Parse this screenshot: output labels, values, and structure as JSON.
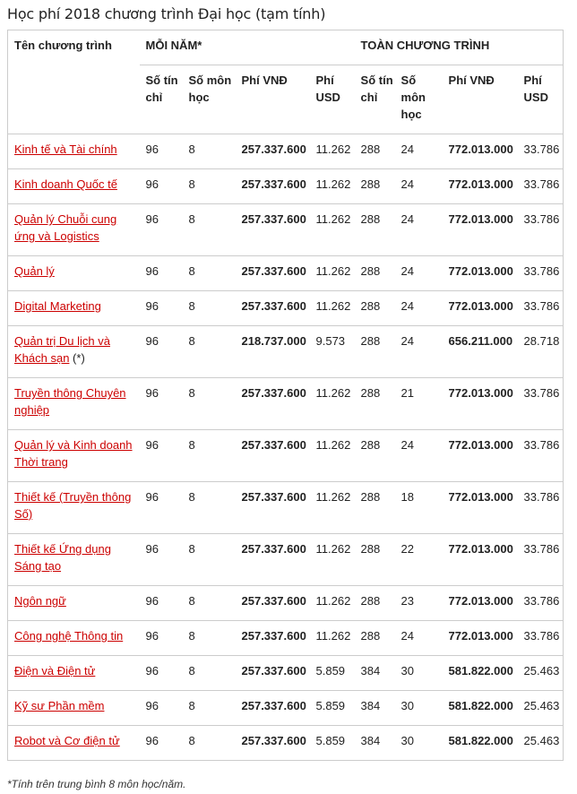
{
  "title": "Học phí 2018 chương trình Đại học (tạm tính)",
  "headers": {
    "program": "Tên chương trình",
    "per_year": "MỖI NĂM*",
    "whole": "TOÀN CHƯƠNG TRÌNH",
    "sub": [
      "Số tín chỉ",
      "Số môn học",
      "Phí VNĐ",
      "Phí USD",
      "Số tín chỉ",
      "Số môn học",
      "Phí VNĐ",
      "Phí USD"
    ]
  },
  "rows": [
    [
      "Kinh tế và Tài chính",
      "",
      "96",
      "8",
      "257.337.600",
      "11.262",
      "288",
      "24",
      "772.013.000",
      "33.786"
    ],
    [
      "Kinh doanh Quốc tế",
      "",
      "96",
      "8",
      "257.337.600",
      "11.262",
      "288",
      "24",
      "772.013.000",
      "33.786"
    ],
    [
      "Quản lý Chuỗi cung ứng và Logistics",
      "",
      "96",
      "8",
      "257.337.600",
      "11.262",
      "288",
      "24",
      "772.013.000",
      "33.786"
    ],
    [
      "Quản lý",
      "",
      "96",
      "8",
      "257.337.600",
      "11.262",
      "288",
      "24",
      "772.013.000",
      "33.786"
    ],
    [
      "Digital Marketing",
      "",
      "96",
      "8",
      "257.337.600",
      "11.262",
      "288",
      "24",
      "772.013.000",
      "33.786"
    ],
    [
      "Quản trị Du lịch và Khách sạn",
      " (*)",
      "96",
      "8",
      "218.737.000",
      "9.573",
      "288",
      "24",
      "656.211.000",
      "28.718"
    ],
    [
      "Truyền thông Chuyên nghiệp",
      "",
      "96",
      "8",
      "257.337.600",
      "11.262",
      "288",
      "21",
      "772.013.000",
      "33.786"
    ],
    [
      "Quản lý và Kinh doanh Thời trang",
      "",
      "96",
      "8",
      "257.337.600",
      "11.262",
      "288",
      "24",
      "772.013.000",
      "33.786"
    ],
    [
      "Thiết kế (Truyền thông Số)",
      "",
      "96",
      "8",
      "257.337.600",
      "11.262",
      "288",
      "18",
      "772.013.000",
      "33.786"
    ],
    [
      "Thiết kế Ứng dụng Sáng tạo",
      "",
      "96",
      "8",
      "257.337.600",
      "11.262",
      "288",
      "22",
      "772.013.000",
      "33.786"
    ],
    [
      "Ngôn ngữ",
      "",
      "96",
      "8",
      "257.337.600",
      "11.262",
      "288",
      "23",
      "772.013.000",
      "33.786"
    ],
    [
      "Công nghệ Thông tin",
      "",
      "96",
      "8",
      "257.337.600",
      "11.262",
      "288",
      "24",
      "772.013.000",
      "33.786"
    ],
    [
      "Điện và Điện tử",
      "",
      "96",
      "8",
      "257.337.600",
      "5.859",
      "384",
      "30",
      "581.822.000",
      "25.463"
    ],
    [
      "Kỹ sư Phần mềm",
      "",
      "96",
      "8",
      "257.337.600",
      "5.859",
      "384",
      "30",
      "581.822.000",
      "25.463"
    ],
    [
      "Robot và Cơ điện tử",
      "",
      "96",
      "8",
      "257.337.600",
      "5.859",
      "384",
      "30",
      "581.822.000",
      "25.463"
    ]
  ],
  "two_line_rows": [
    2,
    5,
    6,
    7,
    8,
    9
  ],
  "footnote": "*Tính trên trung bình 8 môn học/năm.",
  "colors": {
    "link": "#cc0000",
    "border": "#cccccc"
  }
}
